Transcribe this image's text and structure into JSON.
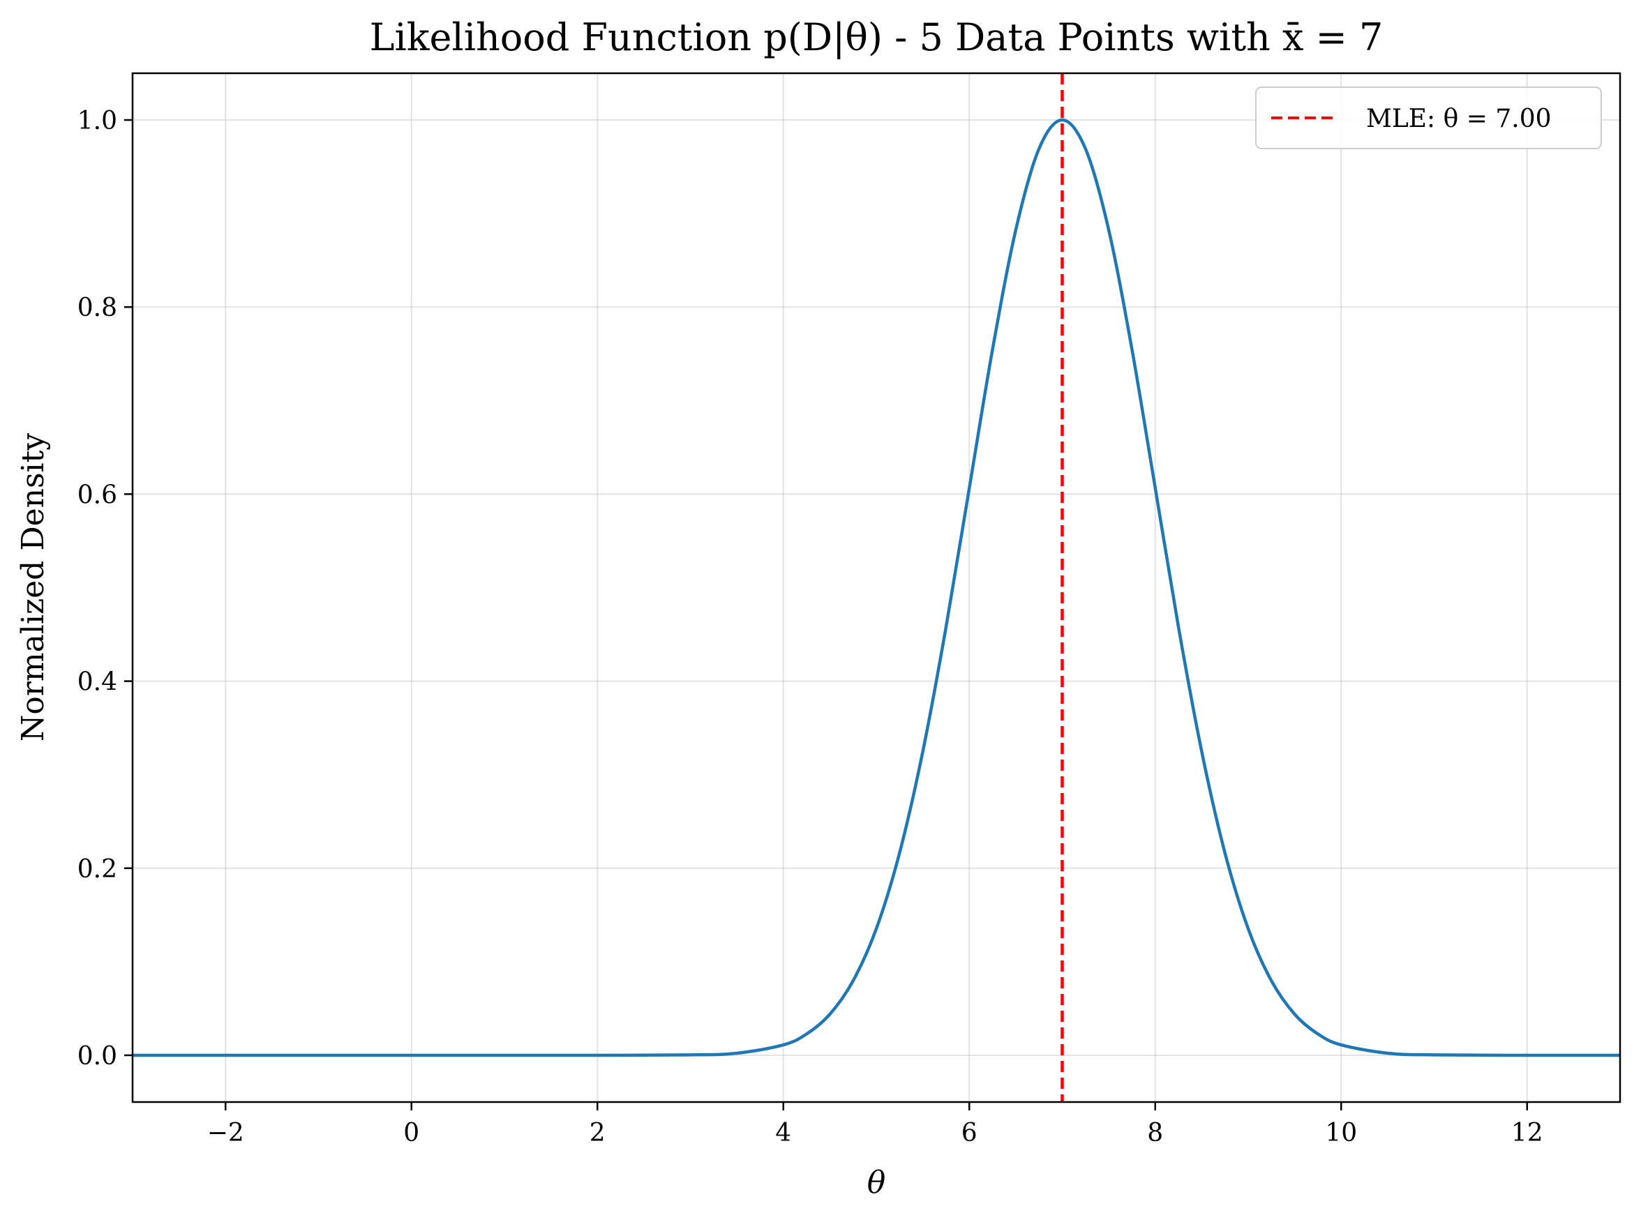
{
  "chart_data": {
    "type": "line",
    "title": "Likelihood Function p(D|θ) - 5 Data Points with x̄ = 7",
    "xlabel": "θ",
    "ylabel": "Normalized Density",
    "xlim": [
      -3,
      13
    ],
    "ylim": [
      -0.05,
      1.05
    ],
    "x_ticks": [
      -2,
      0,
      2,
      4,
      6,
      8,
      10,
      12
    ],
    "x_tick_labels": [
      "−2",
      "0",
      "2",
      "4",
      "6",
      "8",
      "10",
      "12"
    ],
    "y_ticks": [
      0.0,
      0.2,
      0.4,
      0.6,
      0.8,
      1.0
    ],
    "y_tick_labels": [
      "0.0",
      "0.2",
      "0.4",
      "0.6",
      "0.8",
      "1.0"
    ],
    "grid": true,
    "legend_position": "top-right",
    "series": [
      {
        "color": "#1f77b4",
        "style": "solid",
        "x": [
          -3,
          -2,
          -1,
          0,
          1,
          2,
          3,
          3.5,
          4,
          4.25,
          4.5,
          4.75,
          5,
          5.25,
          5.5,
          5.75,
          6,
          6.25,
          6.5,
          6.75,
          7,
          7.25,
          7.5,
          7.75,
          8,
          8.25,
          8.5,
          8.75,
          9,
          9.25,
          9.5,
          9.75,
          10,
          10.5,
          11,
          12,
          13
        ],
        "y": [
          0.0,
          0.0,
          0.0,
          0.0,
          0.0,
          0.0,
          0.0004,
          0.0022,
          0.0111,
          0.0228,
          0.0439,
          0.0796,
          0.1353,
          0.2163,
          0.3247,
          0.4578,
          0.6065,
          0.7548,
          0.8825,
          0.9692,
          1.0,
          0.9692,
          0.8825,
          0.7548,
          0.6065,
          0.4578,
          0.3247,
          0.2163,
          0.1353,
          0.0796,
          0.0439,
          0.0228,
          0.0111,
          0.0022,
          0.0004,
          0.0,
          0.0
        ]
      },
      {
        "name": "MLE: θ = 7.00",
        "color": "#ff0000",
        "style": "dashed",
        "vline_x": 7.0
      }
    ]
  }
}
